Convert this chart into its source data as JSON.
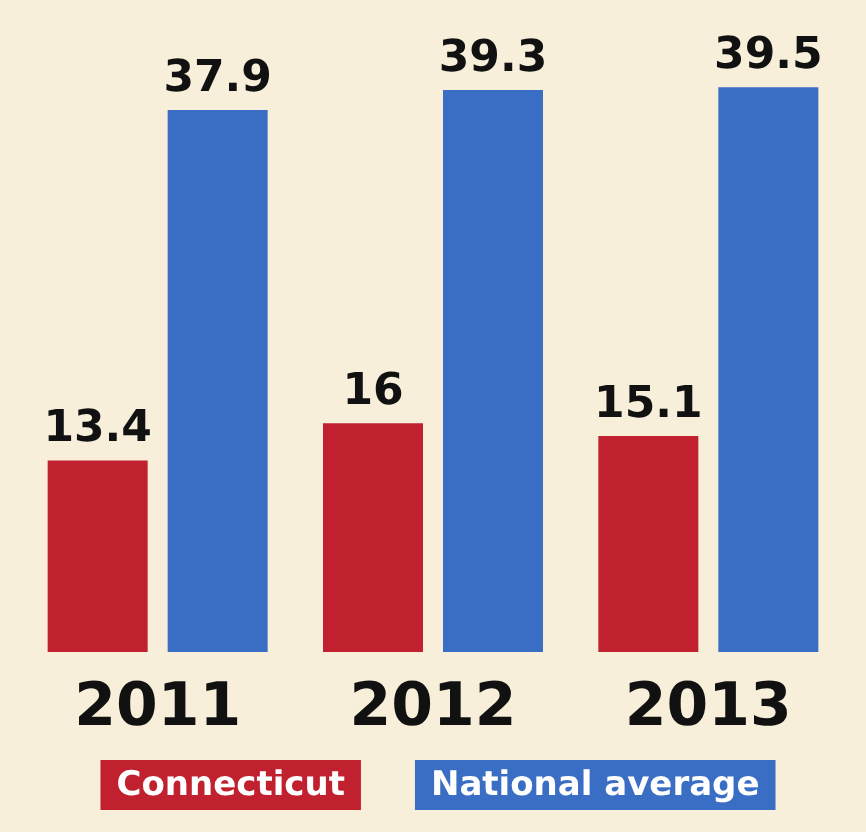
{
  "chart_data": {
    "type": "bar",
    "categories": [
      "2011",
      "2012",
      "2013"
    ],
    "series": [
      {
        "name": "Connecticut",
        "color": "#c1202e",
        "values": [
          13.4,
          16,
          15.1
        ]
      },
      {
        "name": "National average",
        "color": "#3a6ec4",
        "values": [
          37.9,
          39.3,
          39.5
        ]
      }
    ],
    "data_labels": true,
    "legend": "bottom"
  }
}
